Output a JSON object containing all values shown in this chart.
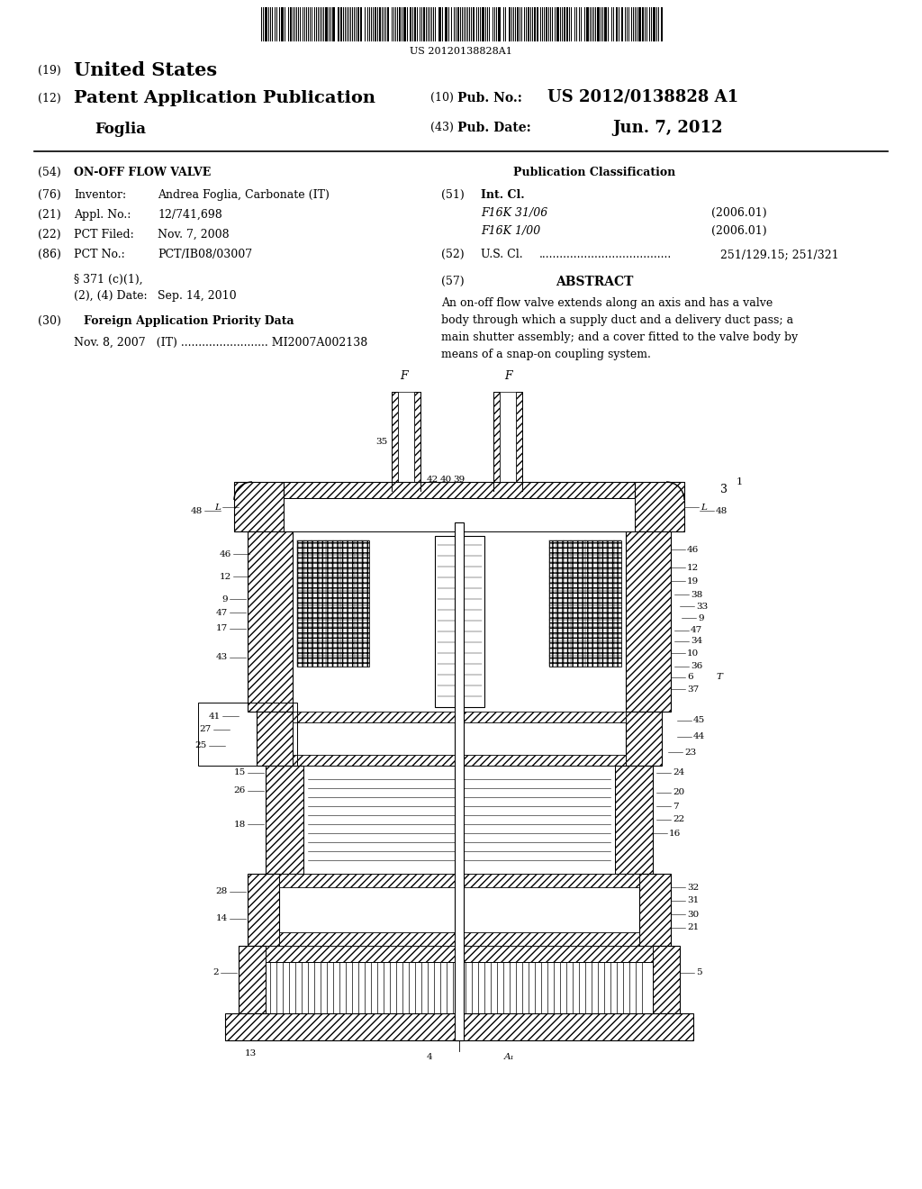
{
  "barcode_text": "US 20120138828A1",
  "pub_no_value": "US 2012/0138828 A1",
  "pub_date_value": "Jun. 7, 2012",
  "field_54_value": "ON-OFF FLOW VALVE",
  "field_76_key": "Inventor:",
  "field_76_value": "Andrea Foglia, Carbonate (IT)",
  "field_21_key": "Appl. No.:",
  "field_21_value": "12/741,698",
  "field_22_key": "PCT Filed:",
  "field_22_value": "Nov. 7, 2008",
  "field_86_key": "PCT No.:",
  "field_86_value": "PCT/IB08/03007",
  "field_371_text": "§ 371 (c)(1),",
  "field_371_b": "(2), (4) Date:",
  "field_371_date": "Sep. 14, 2010",
  "field_30_value": "Foreign Application Priority Data",
  "priority_line": "Nov. 8, 2007   (IT) ......................... MI2007A002138",
  "pub_class_title": "Publication Classification",
  "field_51_key": "Int. Cl.",
  "field_51_class1": "F16K 31/06",
  "field_51_year1": "(2006.01)",
  "field_51_class2": "F16K 1/00",
  "field_51_year2": "(2006.01)",
  "field_52_key": "U.S. Cl.",
  "field_52_value": "251/129.15; 251/321",
  "field_57_title": "ABSTRACT",
  "abstract_lines": [
    "An on-off flow valve extends along an axis and has a valve",
    "body through which a supply duct and a delivery duct pass; a",
    "main shutter assembly; and a cover fitted to the valve body by",
    "means of a snap-on coupling system."
  ],
  "bg_color": "#ffffff"
}
